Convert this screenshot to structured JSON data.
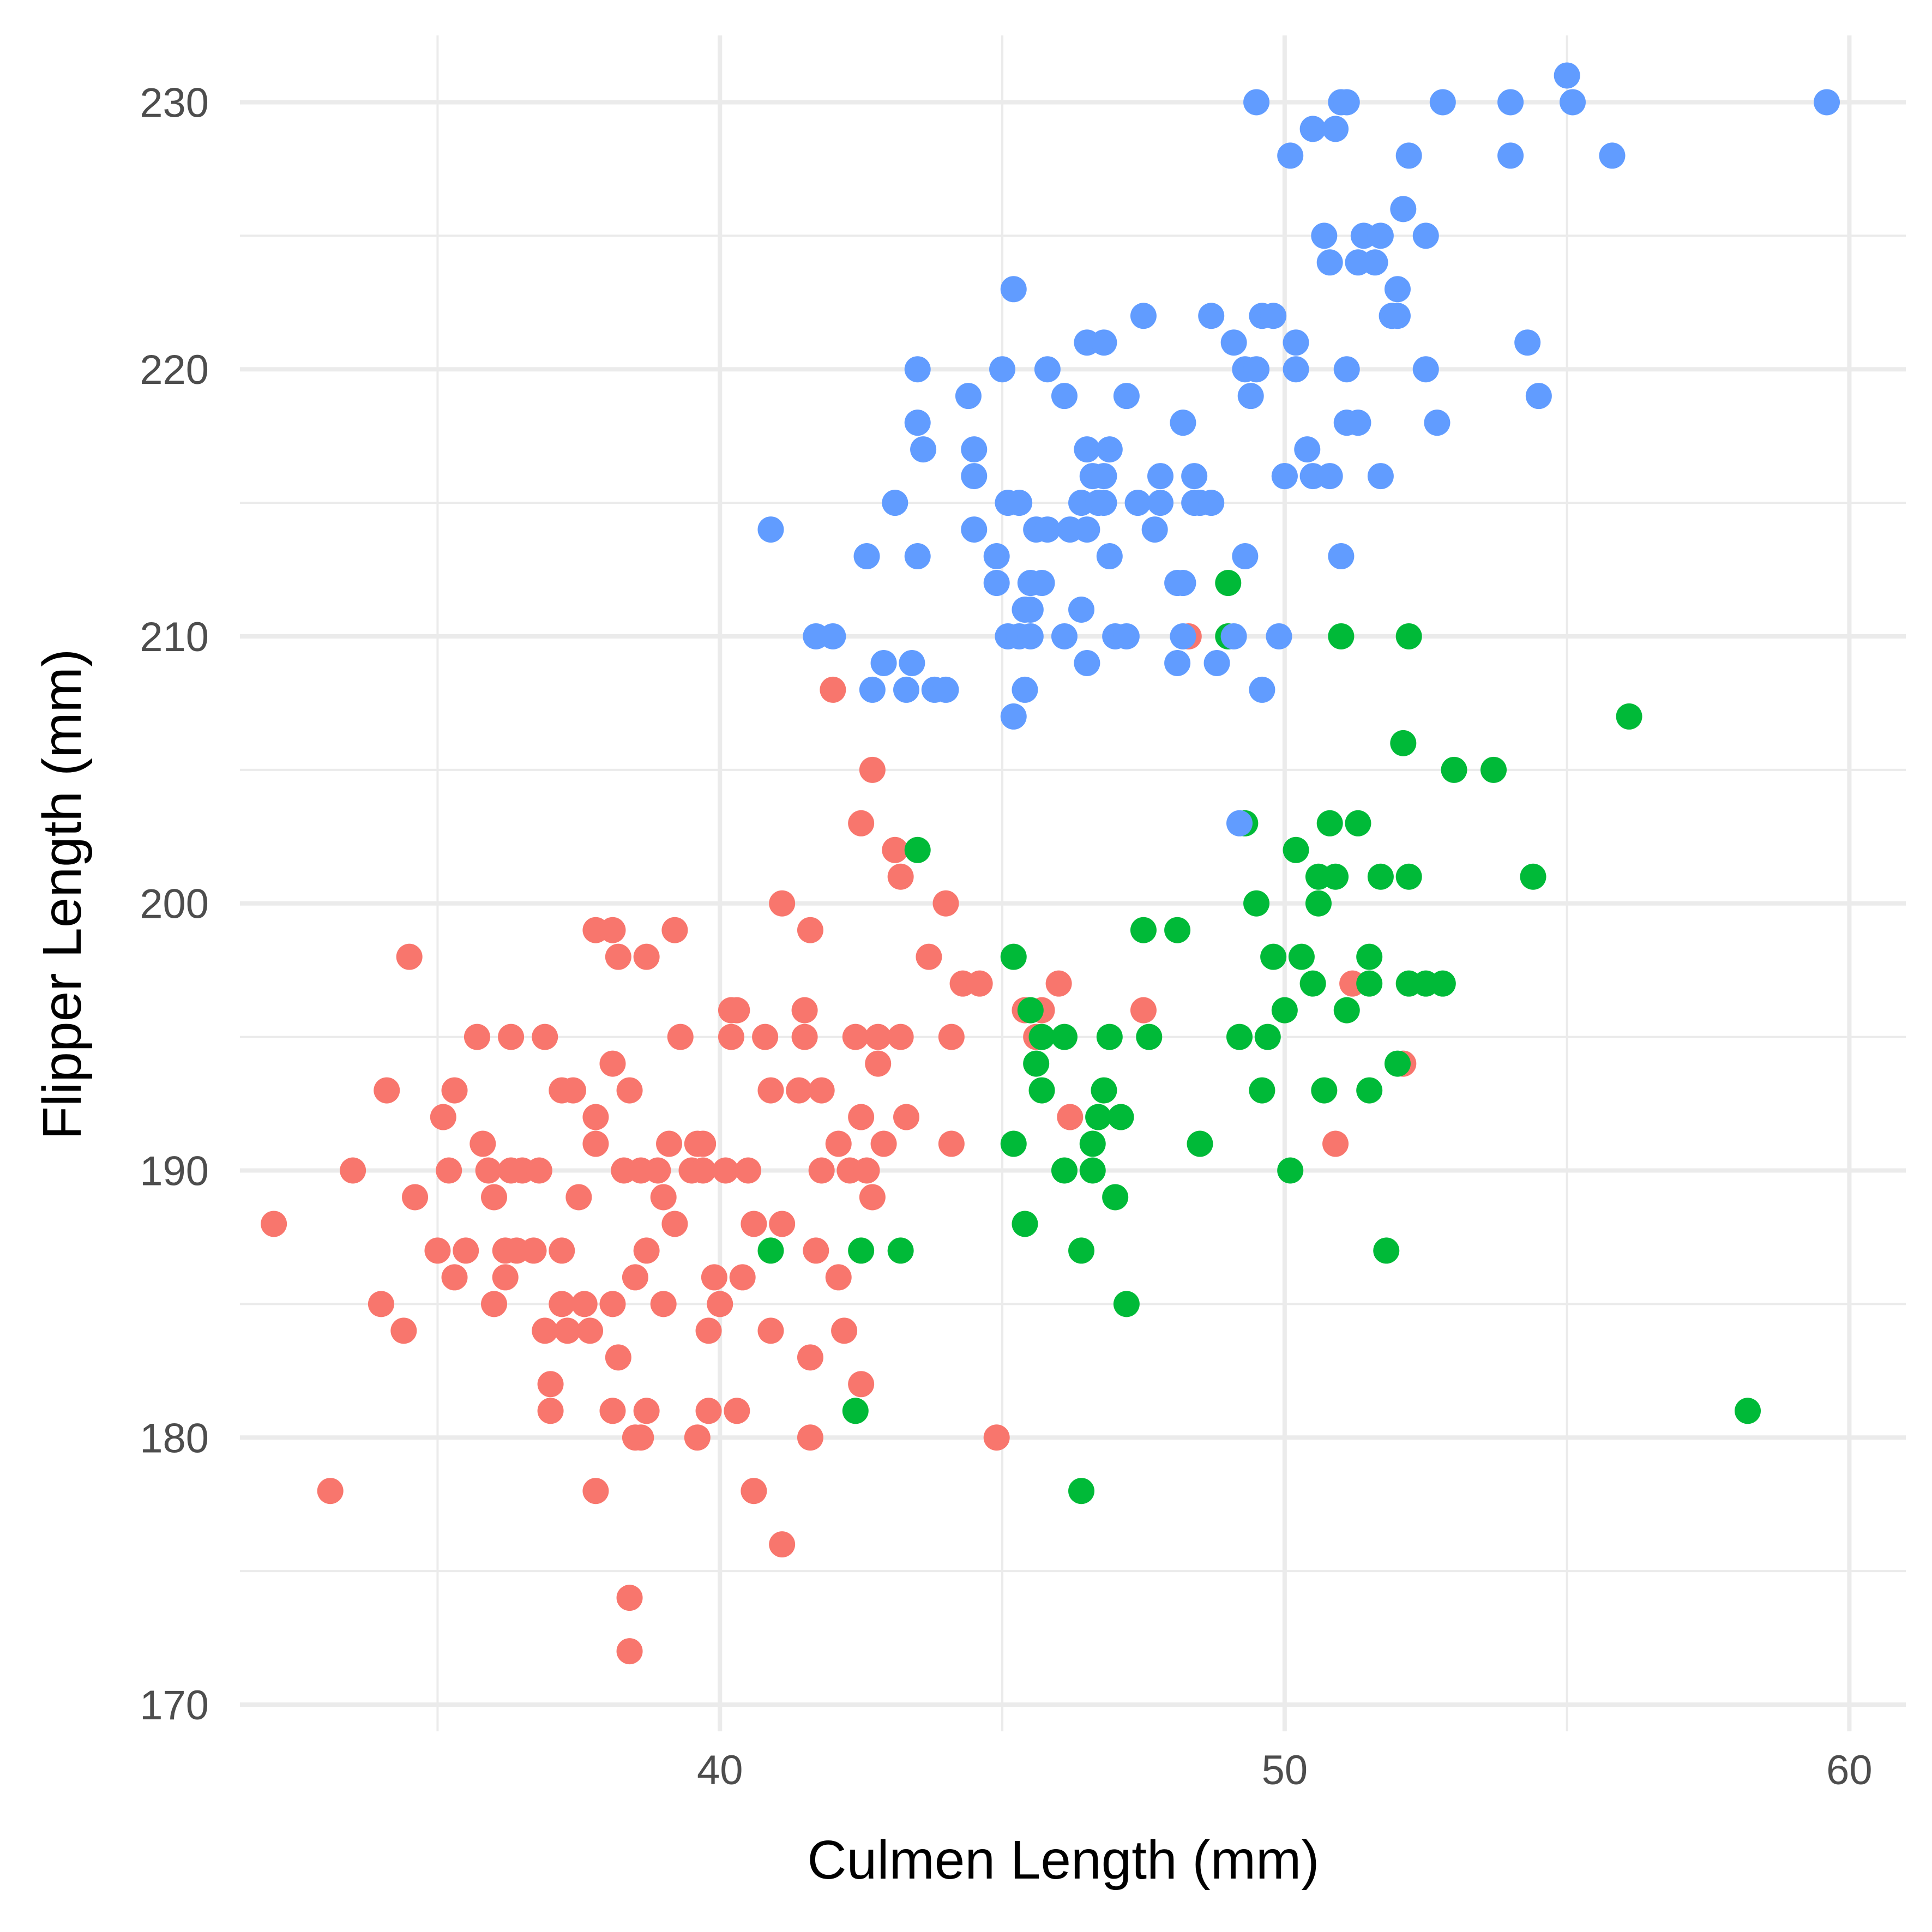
{
  "chart_data": {
    "type": "scatter",
    "title": "",
    "xlabel": "Culmen Length (mm)",
    "ylabel": "Flipper Length (mm)",
    "xlim": [
      31.5,
      61.0
    ],
    "ylim": [
      169.0,
      232.5
    ],
    "x_ticks": [
      40,
      50,
      60
    ],
    "y_ticks": [
      170,
      180,
      190,
      200,
      210,
      220,
      230
    ],
    "grid": true,
    "legend": "none",
    "series": [
      {
        "color": "#F8766D",
        "points": [
          [
            32.1,
            188
          ],
          [
            33.1,
            178
          ],
          [
            33.5,
            190
          ],
          [
            34.0,
            185
          ],
          [
            34.1,
            193
          ],
          [
            34.4,
            184
          ],
          [
            34.5,
            198
          ],
          [
            34.6,
            189
          ],
          [
            35.0,
            187
          ],
          [
            35.1,
            192
          ],
          [
            35.2,
            190
          ],
          [
            35.3,
            193
          ],
          [
            35.3,
            186
          ],
          [
            35.5,
            187
          ],
          [
            35.7,
            195
          ],
          [
            35.8,
            191
          ],
          [
            35.9,
            190
          ],
          [
            36.0,
            189
          ],
          [
            36.0,
            185
          ],
          [
            36.2,
            187
          ],
          [
            36.2,
            186
          ],
          [
            36.3,
            195
          ],
          [
            36.3,
            190
          ],
          [
            36.4,
            187
          ],
          [
            36.5,
            190
          ],
          [
            36.7,
            187
          ],
          [
            36.8,
            190
          ],
          [
            36.9,
            195
          ],
          [
            36.9,
            184
          ],
          [
            37.0,
            182
          ],
          [
            37.0,
            181
          ],
          [
            37.2,
            185
          ],
          [
            37.2,
            193
          ],
          [
            37.2,
            187
          ],
          [
            37.3,
            184
          ],
          [
            37.4,
            193
          ],
          [
            37.5,
            189
          ],
          [
            37.6,
            185
          ],
          [
            37.7,
            184
          ],
          [
            37.8,
            192
          ],
          [
            37.8,
            191
          ],
          [
            37.8,
            178
          ],
          [
            37.8,
            199
          ],
          [
            38.1,
            194
          ],
          [
            38.1,
            181
          ],
          [
            38.1,
            199
          ],
          [
            38.1,
            185
          ],
          [
            38.2,
            198
          ],
          [
            38.2,
            183
          ],
          [
            38.3,
            190
          ],
          [
            38.4,
            172
          ],
          [
            38.4,
            174
          ],
          [
            38.4,
            193
          ],
          [
            38.5,
            180
          ],
          [
            38.5,
            186
          ],
          [
            38.6,
            180
          ],
          [
            38.6,
            190
          ],
          [
            38.7,
            181
          ],
          [
            38.7,
            198
          ],
          [
            38.7,
            187
          ],
          [
            38.9,
            190
          ],
          [
            39.0,
            189
          ],
          [
            39.0,
            185
          ],
          [
            39.1,
            191
          ],
          [
            39.2,
            199
          ],
          [
            39.2,
            188
          ],
          [
            39.3,
            195
          ],
          [
            39.5,
            190
          ],
          [
            39.6,
            180
          ],
          [
            39.6,
            191
          ],
          [
            39.7,
            191
          ],
          [
            39.7,
            190
          ],
          [
            39.8,
            181
          ],
          [
            39.8,
            184
          ],
          [
            39.9,
            186
          ],
          [
            40.0,
            185
          ],
          [
            40.1,
            190
          ],
          [
            40.2,
            196
          ],
          [
            40.2,
            195
          ],
          [
            40.3,
            181
          ],
          [
            40.3,
            196
          ],
          [
            40.4,
            186
          ],
          [
            40.5,
            190
          ],
          [
            40.6,
            188
          ],
          [
            40.6,
            178
          ],
          [
            40.8,
            195
          ],
          [
            40.9,
            184
          ],
          [
            40.9,
            193
          ],
          [
            41.1,
            176
          ],
          [
            41.1,
            200
          ],
          [
            41.1,
            188
          ],
          [
            41.4,
            193
          ],
          [
            41.5,
            195
          ],
          [
            41.5,
            196
          ],
          [
            41.6,
            180
          ],
          [
            41.6,
            183
          ],
          [
            41.6,
            199
          ],
          [
            41.7,
            187
          ],
          [
            41.8,
            193
          ],
          [
            41.8,
            190
          ],
          [
            42.0,
            208
          ],
          [
            42.1,
            191
          ],
          [
            42.1,
            186
          ],
          [
            42.2,
            184
          ],
          [
            42.3,
            190
          ],
          [
            42.4,
            195
          ],
          [
            42.5,
            203
          ],
          [
            42.5,
            182
          ],
          [
            42.5,
            192
          ],
          [
            42.6,
            190
          ],
          [
            42.7,
            205
          ],
          [
            42.7,
            189
          ],
          [
            42.8,
            194
          ],
          [
            42.8,
            195
          ],
          [
            42.9,
            191
          ],
          [
            43.1,
            202
          ],
          [
            43.2,
            201
          ],
          [
            43.2,
            195
          ],
          [
            43.3,
            192
          ],
          [
            43.7,
            198
          ],
          [
            44.0,
            200
          ],
          [
            44.1,
            191
          ],
          [
            44.1,
            195
          ],
          [
            44.3,
            197
          ],
          [
            44.6,
            197
          ],
          [
            44.9,
            180
          ],
          [
            45.4,
            196
          ],
          [
            45.6,
            195
          ],
          [
            45.7,
            196
          ],
          [
            46.0,
            197
          ],
          [
            46.2,
            192
          ],
          [
            47.5,
            196
          ],
          [
            48.3,
            210
          ],
          [
            50.9,
            191
          ],
          [
            51.2,
            197
          ],
          [
            52.1,
            194
          ]
        ]
      },
      {
        "color": "#00BA38",
        "points": [
          [
            40.9,
            187
          ],
          [
            42.4,
            181
          ],
          [
            42.5,
            187
          ],
          [
            43.2,
            187
          ],
          [
            43.5,
            202
          ],
          [
            45.2,
            191
          ],
          [
            45.2,
            198
          ],
          [
            45.4,
            188
          ],
          [
            45.5,
            196
          ],
          [
            45.6,
            194
          ],
          [
            45.7,
            195
          ],
          [
            45.7,
            193
          ],
          [
            46.1,
            195
          ],
          [
            46.1,
            190
          ],
          [
            46.4,
            178
          ],
          [
            46.4,
            187
          ],
          [
            46.6,
            191
          ],
          [
            46.6,
            190
          ],
          [
            46.7,
            192
          ],
          [
            46.8,
            193
          ],
          [
            46.9,
            195
          ],
          [
            47.0,
            189
          ],
          [
            47.1,
            192
          ],
          [
            47.2,
            185
          ],
          [
            47.5,
            199
          ],
          [
            47.6,
            195
          ],
          [
            48.1,
            199
          ],
          [
            48.5,
            191
          ],
          [
            49.0,
            212
          ],
          [
            49.0,
            210
          ],
          [
            49.2,
            195
          ],
          [
            49.3,
            203
          ],
          [
            49.5,
            200
          ],
          [
            49.6,
            193
          ],
          [
            49.7,
            195
          ],
          [
            49.8,
            198
          ],
          [
            50.0,
            196
          ],
          [
            50.1,
            190
          ],
          [
            50.2,
            202
          ],
          [
            50.3,
            198
          ],
          [
            50.5,
            197
          ],
          [
            50.6,
            201
          ],
          [
            50.6,
            200
          ],
          [
            50.7,
            193
          ],
          [
            50.8,
            203
          ],
          [
            50.9,
            201
          ],
          [
            51.0,
            210
          ],
          [
            51.1,
            196
          ],
          [
            51.3,
            203
          ],
          [
            51.5,
            198
          ],
          [
            51.5,
            197
          ],
          [
            51.5,
            193
          ],
          [
            51.7,
            201
          ],
          [
            51.8,
            187
          ],
          [
            52.0,
            194
          ],
          [
            52.1,
            206
          ],
          [
            52.2,
            201
          ],
          [
            52.2,
            210
          ],
          [
            52.2,
            197
          ],
          [
            52.5,
            197
          ],
          [
            52.8,
            197
          ],
          [
            53.0,
            205
          ],
          [
            53.7,
            205
          ],
          [
            54.4,
            201
          ],
          [
            56.1,
            207
          ],
          [
            58.2,
            181
          ]
        ]
      },
      {
        "color": "#619CFF",
        "points": [
          [
            40.9,
            214
          ],
          [
            41.7,
            210
          ],
          [
            42.0,
            210
          ],
          [
            42.6,
            213
          ],
          [
            42.7,
            208
          ],
          [
            42.9,
            209
          ],
          [
            43.1,
            215
          ],
          [
            43.3,
            208
          ],
          [
            43.4,
            209
          ],
          [
            43.5,
            213
          ],
          [
            43.5,
            220
          ],
          [
            43.5,
            218
          ],
          [
            43.6,
            217
          ],
          [
            43.8,
            208
          ],
          [
            44.0,
            208
          ],
          [
            44.4,
            219
          ],
          [
            44.5,
            217
          ],
          [
            44.5,
            216
          ],
          [
            44.5,
            214
          ],
          [
            44.9,
            212
          ],
          [
            44.9,
            213
          ],
          [
            45.0,
            220
          ],
          [
            45.1,
            215
          ],
          [
            45.1,
            210
          ],
          [
            45.2,
            207
          ],
          [
            45.2,
            223
          ],
          [
            45.3,
            215
          ],
          [
            45.3,
            210
          ],
          [
            45.4,
            208
          ],
          [
            45.4,
            211
          ],
          [
            45.5,
            212
          ],
          [
            45.5,
            210
          ],
          [
            45.5,
            211
          ],
          [
            45.6,
            214
          ],
          [
            45.7,
            212
          ],
          [
            45.8,
            220
          ],
          [
            45.8,
            214
          ],
          [
            46.1,
            219
          ],
          [
            46.1,
            210
          ],
          [
            46.2,
            214
          ],
          [
            46.4,
            215
          ],
          [
            46.4,
            211
          ],
          [
            46.5,
            217
          ],
          [
            46.5,
            214
          ],
          [
            46.5,
            221
          ],
          [
            46.5,
            209
          ],
          [
            46.6,
            216
          ],
          [
            46.7,
            215
          ],
          [
            46.8,
            215
          ],
          [
            46.8,
            221
          ],
          [
            46.8,
            216
          ],
          [
            46.9,
            213
          ],
          [
            46.9,
            217
          ],
          [
            47.0,
            210
          ],
          [
            47.2,
            210
          ],
          [
            47.2,
            219
          ],
          [
            47.4,
            215
          ],
          [
            47.5,
            222
          ],
          [
            47.7,
            214
          ],
          [
            47.8,
            215
          ],
          [
            47.8,
            216
          ],
          [
            48.1,
            212
          ],
          [
            48.1,
            209
          ],
          [
            48.2,
            210
          ],
          [
            48.2,
            218
          ],
          [
            48.2,
            212
          ],
          [
            48.4,
            215
          ],
          [
            48.4,
            216
          ],
          [
            48.5,
            215
          ],
          [
            48.7,
            222
          ],
          [
            48.7,
            215
          ],
          [
            48.8,
            209
          ],
          [
            49.1,
            221
          ],
          [
            49.1,
            210
          ],
          [
            49.2,
            203
          ],
          [
            49.3,
            213
          ],
          [
            49.3,
            220
          ],
          [
            49.4,
            219
          ],
          [
            49.5,
            220
          ],
          [
            49.5,
            230
          ],
          [
            49.6,
            222
          ],
          [
            49.6,
            208
          ],
          [
            49.8,
            222
          ],
          [
            49.9,
            210
          ],
          [
            50.0,
            216
          ],
          [
            50.0,
            216
          ],
          [
            50.1,
            228
          ],
          [
            50.2,
            221
          ],
          [
            50.2,
            220
          ],
          [
            50.4,
            217
          ],
          [
            50.5,
            229
          ],
          [
            50.5,
            216
          ],
          [
            50.7,
            225
          ],
          [
            50.8,
            224
          ],
          [
            50.8,
            216
          ],
          [
            50.9,
            229
          ],
          [
            51.0,
            230
          ],
          [
            51.0,
            213
          ],
          [
            51.1,
            218
          ],
          [
            51.1,
            230
          ],
          [
            51.1,
            220
          ],
          [
            51.3,
            224
          ],
          [
            51.3,
            218
          ],
          [
            51.4,
            225
          ],
          [
            51.6,
            224
          ],
          [
            51.7,
            216
          ],
          [
            51.7,
            225
          ],
          [
            51.9,
            222
          ],
          [
            52.0,
            223
          ],
          [
            52.0,
            222
          ],
          [
            52.1,
            226
          ],
          [
            52.2,
            228
          ],
          [
            52.5,
            225
          ],
          [
            52.5,
            220
          ],
          [
            52.7,
            218
          ],
          [
            52.8,
            230
          ],
          [
            54.0,
            230
          ],
          [
            54.0,
            228
          ],
          [
            54.3,
            221
          ],
          [
            54.5,
            219
          ],
          [
            55.0,
            231
          ],
          [
            55.1,
            230
          ],
          [
            55.8,
            228
          ],
          [
            59.6,
            230
          ]
        ]
      }
    ]
  }
}
